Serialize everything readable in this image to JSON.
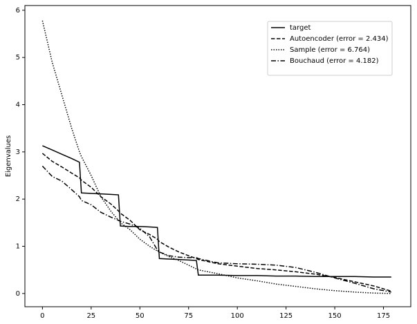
{
  "chart_data": {
    "type": "line",
    "ylabel": "Eigenvalues",
    "x": [
      0,
      5,
      10,
      15,
      19,
      20,
      25,
      30,
      35,
      39,
      40,
      45,
      50,
      55,
      59,
      60,
      65,
      70,
      75,
      79,
      80,
      90,
      100,
      110,
      120,
      130,
      140,
      150,
      160,
      170,
      179
    ],
    "series": [
      {
        "name": "target",
        "color": "#000000",
        "dash": "solid",
        "values": [
          3.13,
          3.04,
          2.95,
          2.86,
          2.78,
          2.13,
          2.12,
          2.11,
          2.1,
          2.09,
          1.43,
          1.42,
          1.42,
          1.41,
          1.4,
          0.74,
          0.73,
          0.72,
          0.71,
          0.7,
          0.39,
          0.39,
          0.38,
          0.38,
          0.37,
          0.37,
          0.36,
          0.36,
          0.36,
          0.35,
          0.35
        ]
      },
      {
        "name": "Autoencoder (error = 2.434)",
        "color": "#000000",
        "dash": "dashed",
        "values": [
          2.97,
          2.8,
          2.68,
          2.55,
          2.45,
          2.4,
          2.25,
          2.05,
          1.9,
          1.75,
          1.7,
          1.55,
          1.35,
          1.25,
          1.15,
          1.1,
          0.98,
          0.88,
          0.8,
          0.74,
          0.72,
          0.63,
          0.58,
          0.53,
          0.5,
          0.46,
          0.41,
          0.34,
          0.25,
          0.16,
          0.05
        ]
      },
      {
        "name": "Sample (error = 6.764)",
        "color": "#000000",
        "dash": "dotted",
        "values": [
          5.78,
          4.9,
          4.2,
          3.5,
          3.0,
          2.9,
          2.5,
          2.05,
          1.75,
          1.55,
          1.5,
          1.35,
          1.15,
          1.0,
          0.9,
          0.88,
          0.78,
          0.7,
          0.6,
          0.52,
          0.5,
          0.42,
          0.33,
          0.27,
          0.2,
          0.15,
          0.1,
          0.06,
          0.03,
          0.01,
          0.0
        ]
      },
      {
        "name": "Bouchaud (error = 4.182)",
        "color": "#000000",
        "dash": "dashdot",
        "values": [
          2.7,
          2.48,
          2.38,
          2.2,
          2.05,
          1.97,
          1.88,
          1.72,
          1.62,
          1.55,
          1.53,
          1.47,
          1.38,
          1.2,
          0.92,
          0.88,
          0.8,
          0.77,
          0.76,
          0.76,
          0.74,
          0.65,
          0.63,
          0.62,
          0.6,
          0.55,
          0.45,
          0.33,
          0.22,
          0.1,
          0.03
        ]
      }
    ],
    "xlim": [
      -9,
      189
    ],
    "xticks": [
      0,
      25,
      50,
      75,
      100,
      125,
      150,
      175
    ],
    "ylim": [
      -0.28,
      6.1
    ],
    "yticks": [
      0,
      1,
      2,
      3,
      4,
      5,
      6
    ],
    "grid": false,
    "legend": "upper right"
  }
}
